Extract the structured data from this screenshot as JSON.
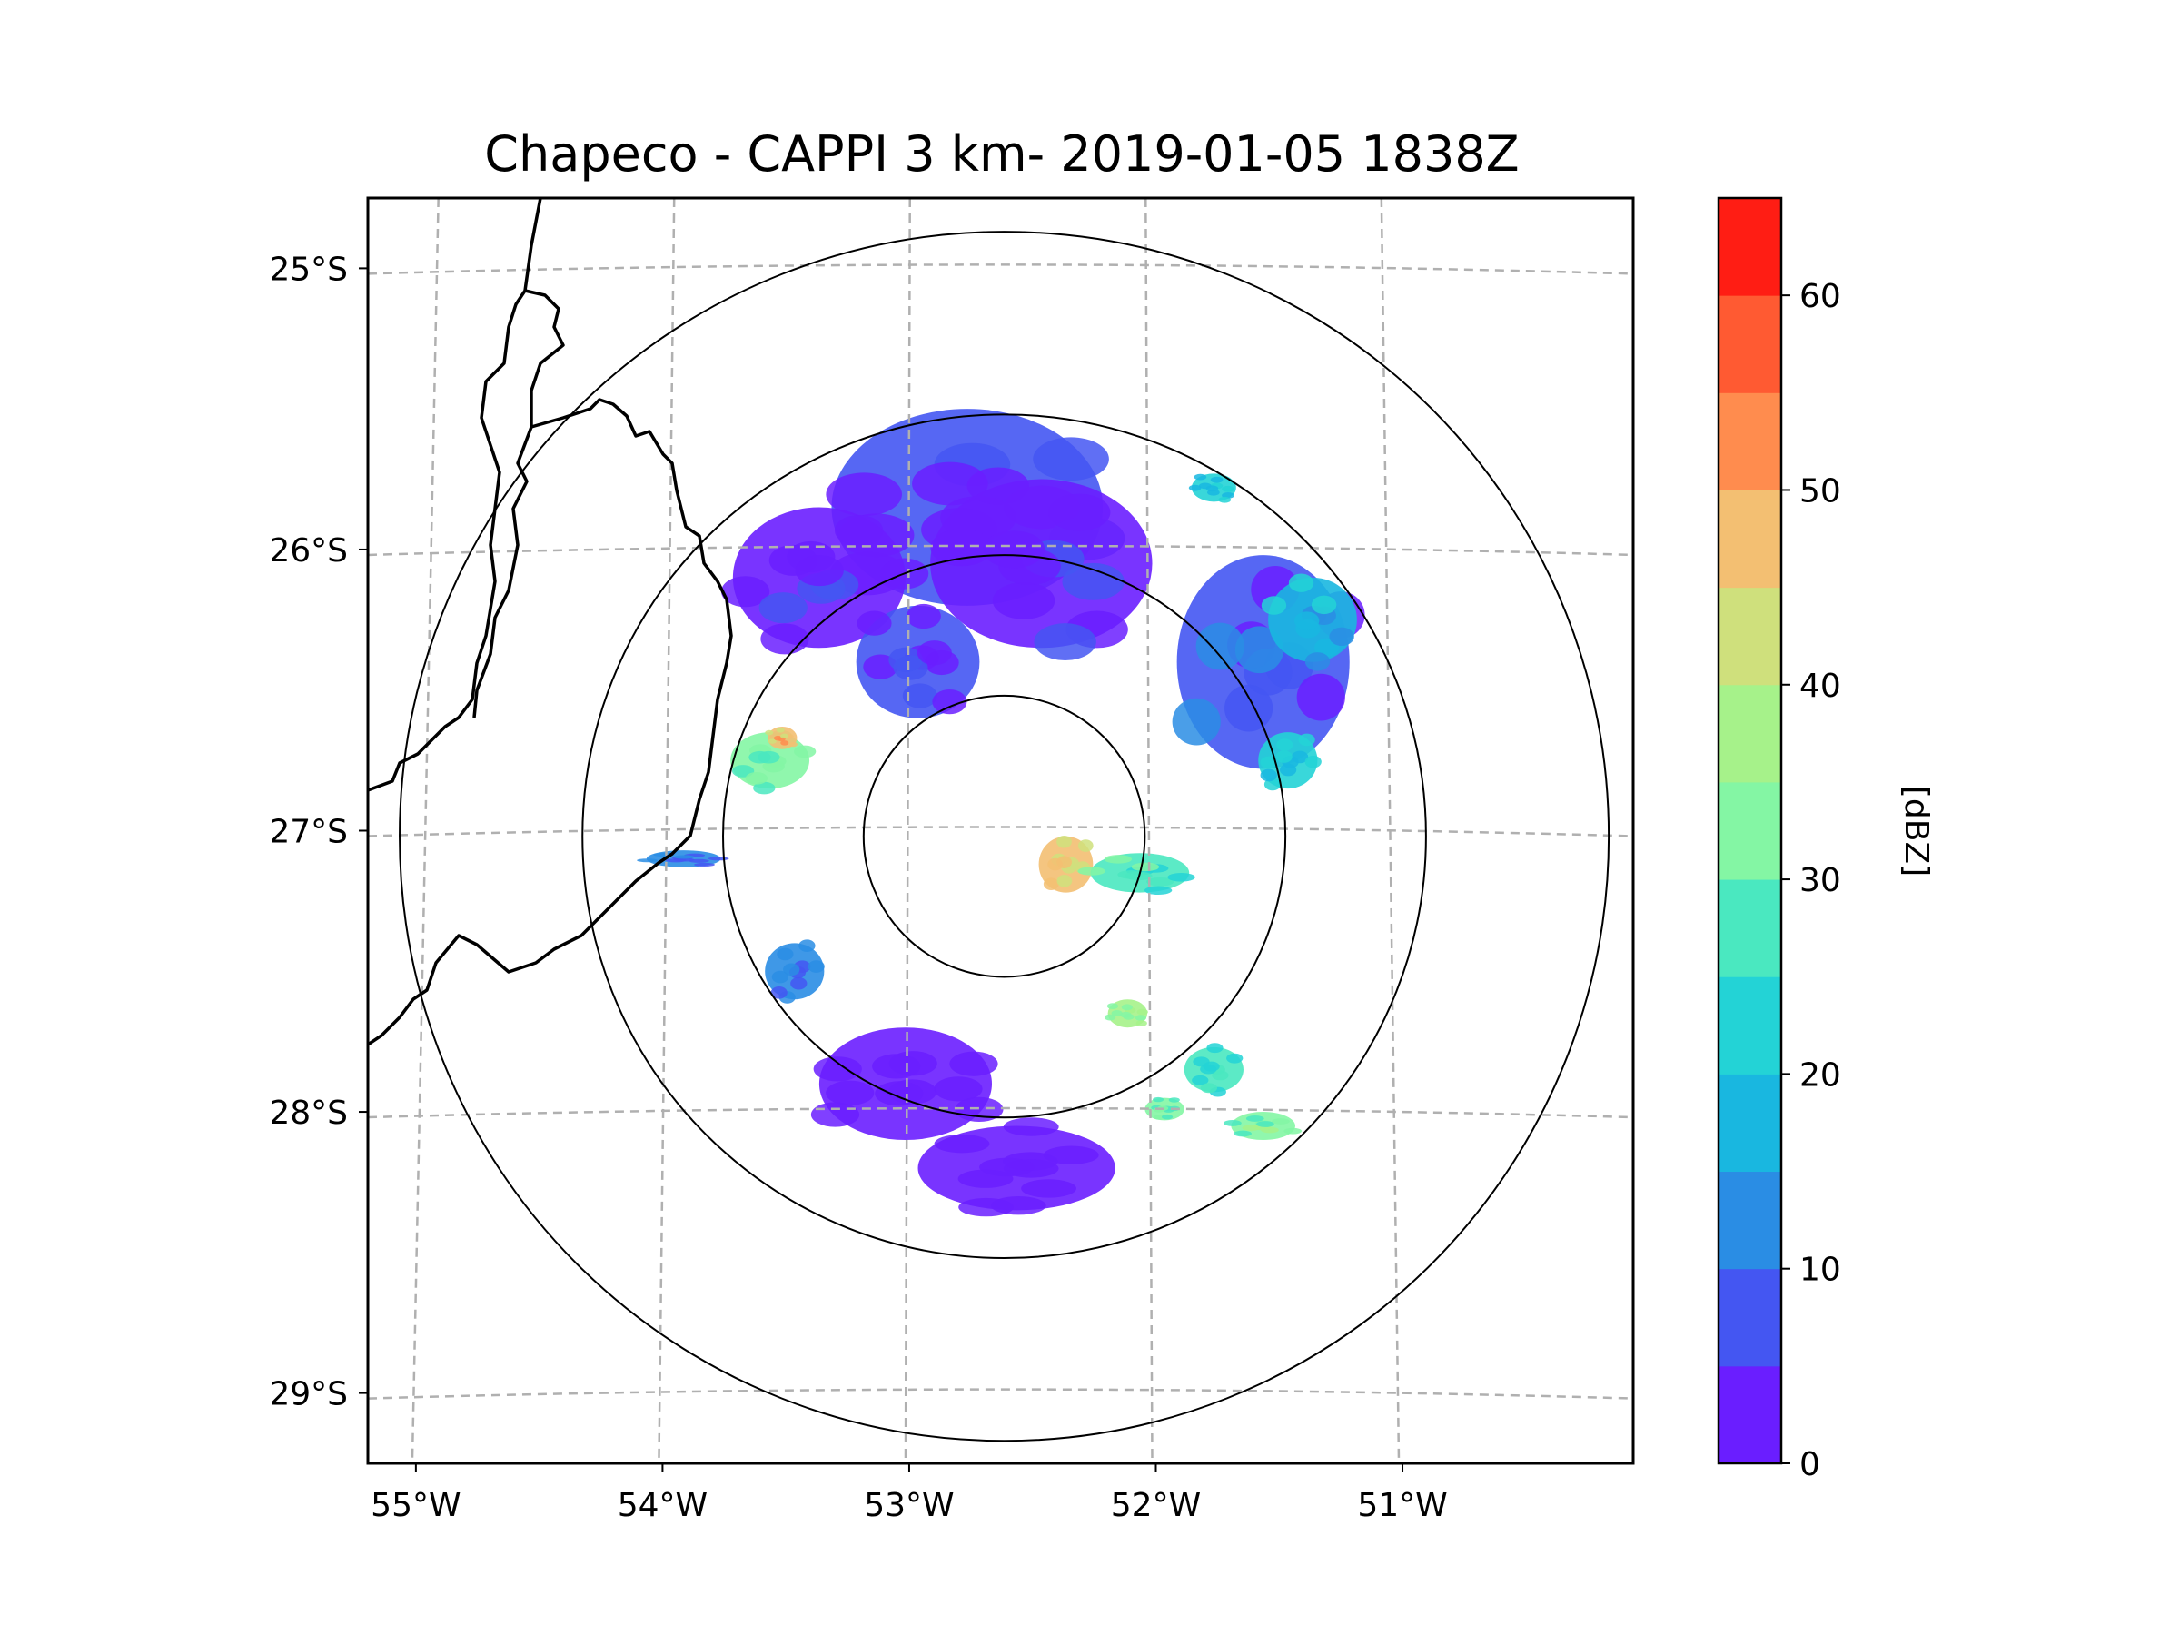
{
  "chart_data": {
    "type": "heatmap",
    "title": "Chapeco - CAPPI 3 km- 2019-01-05 1838Z",
    "xlabel": "",
    "ylabel": "",
    "lon_range": [
      -55.18,
      -50.05
    ],
    "lat_range": [
      -29.25,
      -24.75
    ],
    "x_ticks": [
      {
        "value": -55,
        "label": "55°W"
      },
      {
        "value": -54,
        "label": "54°W"
      },
      {
        "value": -53,
        "label": "53°W"
      },
      {
        "value": -52,
        "label": "52°W"
      },
      {
        "value": -51,
        "label": "51°W"
      }
    ],
    "y_ticks": [
      {
        "value": -25,
        "label": "25°S"
      },
      {
        "value": -26,
        "label": "26°S"
      },
      {
        "value": -27,
        "label": "27°S"
      },
      {
        "value": -28,
        "label": "28°S"
      },
      {
        "value": -29,
        "label": "29°S"
      }
    ],
    "grid": true,
    "radar_center": {
      "lon": -52.6,
      "lat": -27.02
    },
    "range_rings_deg": [
      0.5,
      1.0,
      1.5,
      2.15
    ],
    "colorbar": {
      "label": "[dBZ]",
      "min": 0,
      "max": 65,
      "ticks": [
        0,
        10,
        20,
        30,
        40,
        50,
        60
      ],
      "levels": [
        0,
        5,
        10,
        15,
        20,
        25,
        30,
        35,
        40,
        45,
        50,
        55,
        60,
        65
      ],
      "colors": [
        "#6a1eff",
        "#4456f2",
        "#2a8de4",
        "#19b7e0",
        "#23d3d6",
        "#4ae8c0",
        "#84f6a4",
        "#a6f28a",
        "#cfe07c",
        "#f3bf72",
        "#ff8c4e",
        "#ff5a32",
        "#ff1d14"
      ]
    },
    "echo_regions": [
      {
        "lon": -52.75,
        "lat": -25.85,
        "rlon": 0.55,
        "rlat": 0.35,
        "dbz": 5
      },
      {
        "lon": -52.45,
        "lat": -26.05,
        "rlon": 0.45,
        "rlat": 0.3,
        "dbz": 3
      },
      {
        "lon": -53.35,
        "lat": -26.1,
        "rlon": 0.35,
        "rlat": 0.25,
        "dbz": 3
      },
      {
        "lon": -52.95,
        "lat": -26.4,
        "rlon": 0.25,
        "rlat": 0.2,
        "dbz": 5
      },
      {
        "lon": -51.55,
        "lat": -26.4,
        "rlon": 0.35,
        "rlat": 0.38,
        "dbz": 8
      },
      {
        "lon": -51.35,
        "lat": -26.25,
        "rlon": 0.18,
        "rlat": 0.15,
        "dbz": 18
      },
      {
        "lon": -51.45,
        "lat": -26.75,
        "rlon": 0.12,
        "rlat": 0.1,
        "dbz": 22
      },
      {
        "lon": -51.75,
        "lat": -25.78,
        "rlon": 0.09,
        "rlat": 0.05,
        "dbz": 20
      },
      {
        "lon": -53.55,
        "lat": -26.75,
        "rlon": 0.16,
        "rlat": 0.1,
        "dbz": 32
      },
      {
        "lon": -53.5,
        "lat": -26.67,
        "rlon": 0.06,
        "rlat": 0.04,
        "dbz": 48
      },
      {
        "lon": -52.35,
        "lat": -27.12,
        "rlon": 0.11,
        "rlat": 0.1,
        "dbz": 45
      },
      {
        "lon": -52.05,
        "lat": -27.15,
        "rlon": 0.2,
        "rlat": 0.07,
        "dbz": 28
      },
      {
        "lon": -53.45,
        "lat": -27.5,
        "rlon": 0.12,
        "rlat": 0.1,
        "dbz": 12
      },
      {
        "lon": -52.1,
        "lat": -27.65,
        "rlon": 0.08,
        "rlat": 0.05,
        "dbz": 35
      },
      {
        "lon": -51.75,
        "lat": -27.85,
        "rlon": 0.12,
        "rlat": 0.08,
        "dbz": 25
      },
      {
        "lon": -51.55,
        "lat": -28.05,
        "rlon": 0.13,
        "rlat": 0.05,
        "dbz": 33
      },
      {
        "lon": -51.95,
        "lat": -27.99,
        "rlon": 0.08,
        "rlat": 0.04,
        "dbz": 30
      },
      {
        "lon": -53.9,
        "lat": -27.1,
        "rlon": 0.15,
        "rlat": 0.03,
        "dbz": 10
      },
      {
        "lon": -52.55,
        "lat": -28.2,
        "rlon": 0.4,
        "rlat": 0.15,
        "dbz": 2
      },
      {
        "lon": -53.0,
        "lat": -27.9,
        "rlon": 0.35,
        "rlat": 0.2,
        "dbz": 2
      }
    ]
  }
}
